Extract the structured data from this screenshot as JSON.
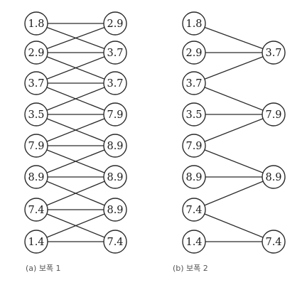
{
  "diagram_a": {
    "caption": "(a) 보폭 1",
    "left_nodes": [
      "1.8",
      "2.9",
      "3.7",
      "3.5",
      "7.9",
      "8.9",
      "7.4",
      "1.4"
    ],
    "right_nodes": [
      "2.9",
      "3.7",
      "3.7",
      "7.9",
      "8.9",
      "8.9",
      "8.9",
      "7.4"
    ],
    "edges": [
      [
        0,
        0
      ],
      [
        0,
        1
      ],
      [
        1,
        0
      ],
      [
        1,
        1
      ],
      [
        1,
        2
      ],
      [
        2,
        1
      ],
      [
        2,
        2
      ],
      [
        2,
        3
      ],
      [
        3,
        2
      ],
      [
        3,
        3
      ],
      [
        3,
        4
      ],
      [
        4,
        3
      ],
      [
        4,
        4
      ],
      [
        4,
        5
      ],
      [
        5,
        4
      ],
      [
        5,
        5
      ],
      [
        5,
        6
      ],
      [
        6,
        5
      ],
      [
        6,
        6
      ],
      [
        6,
        7
      ],
      [
        7,
        6
      ],
      [
        7,
        7
      ]
    ]
  },
  "diagram_b": {
    "caption": "(b) 보폭 2",
    "left_nodes": [
      "1.8",
      "2.9",
      "3.7",
      "3.5",
      "7.9",
      "8.9",
      "7.4",
      "1.4"
    ],
    "right_nodes": [
      "3.7",
      "7.9",
      "8.9",
      "7.4"
    ],
    "edges": [
      [
        0,
        0
      ],
      [
        1,
        0
      ],
      [
        2,
        0
      ],
      [
        2,
        1
      ],
      [
        3,
        1
      ],
      [
        4,
        1
      ],
      [
        4,
        2
      ],
      [
        5,
        2
      ],
      [
        6,
        2
      ],
      [
        6,
        3
      ],
      [
        7,
        3
      ]
    ]
  }
}
